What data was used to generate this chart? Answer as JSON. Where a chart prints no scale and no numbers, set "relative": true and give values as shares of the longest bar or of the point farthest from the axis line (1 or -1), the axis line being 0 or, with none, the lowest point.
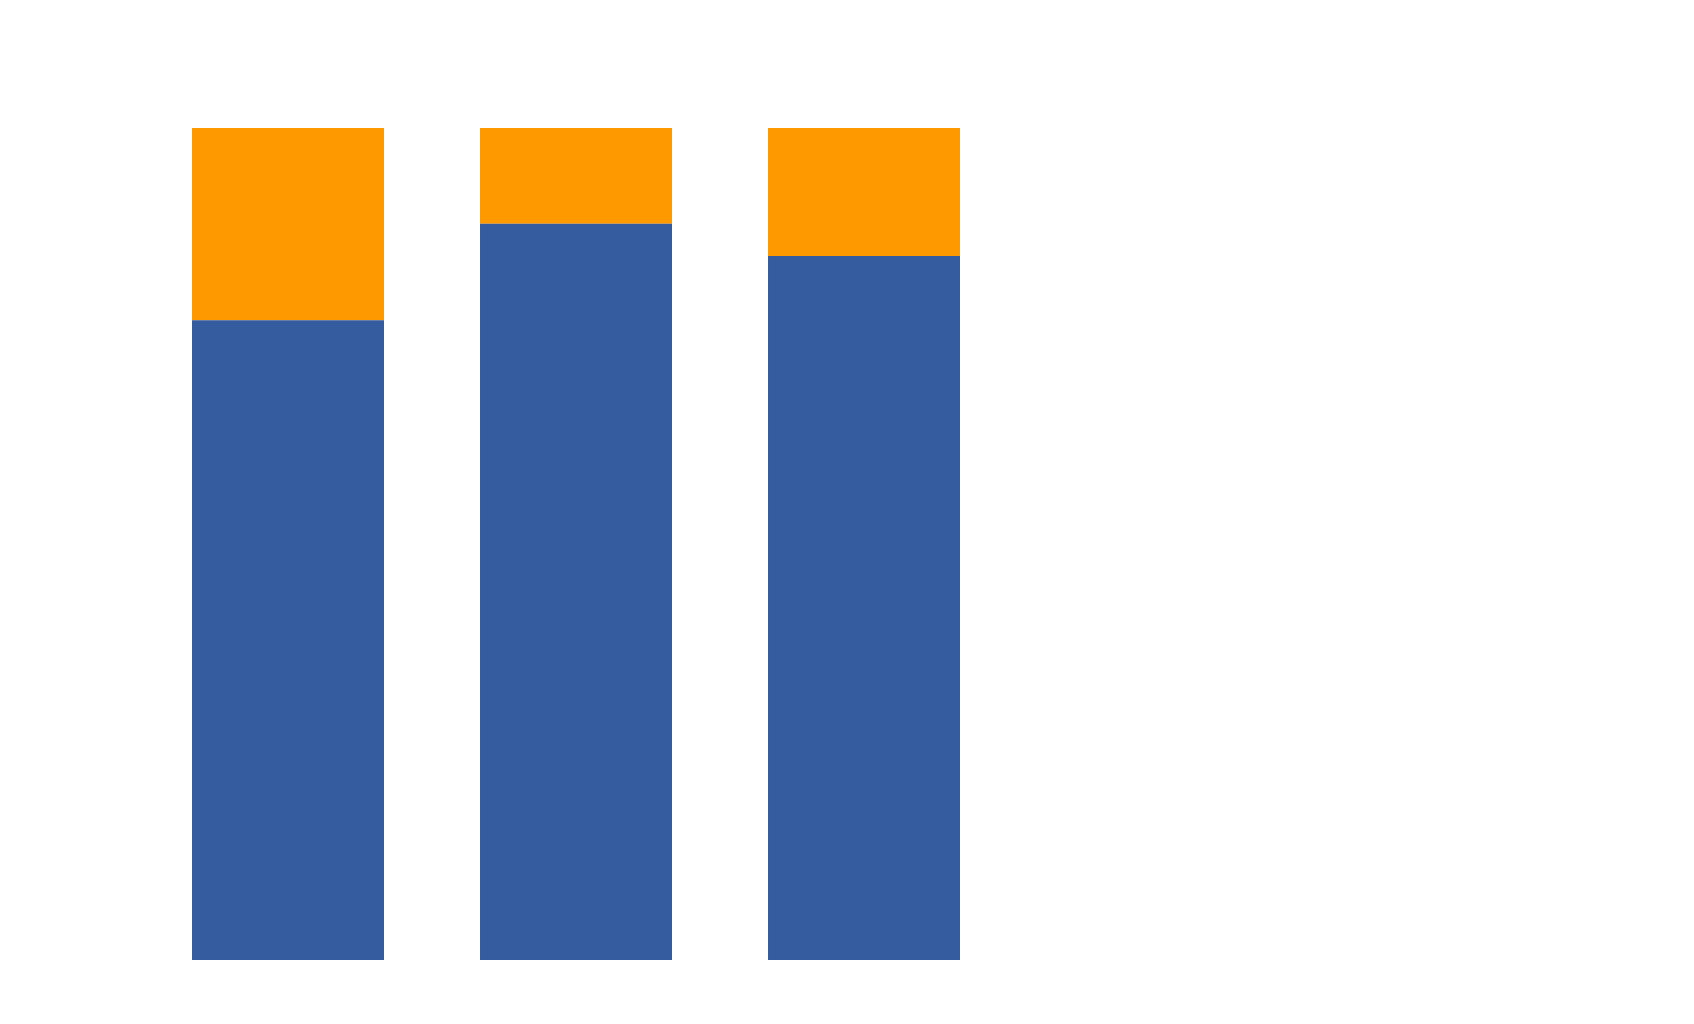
{
  "chart_data": {
    "type": "bar",
    "stacked": true,
    "relative": true,
    "categories": [
      null,
      null,
      null
    ],
    "series": [
      {
        "color": "#365ca0",
        "values": [
          0.769,
          0.885,
          0.846
        ]
      },
      {
        "color": "#ff9900",
        "values": [
          0.231,
          0.115,
          0.154
        ]
      }
    ]
  }
}
